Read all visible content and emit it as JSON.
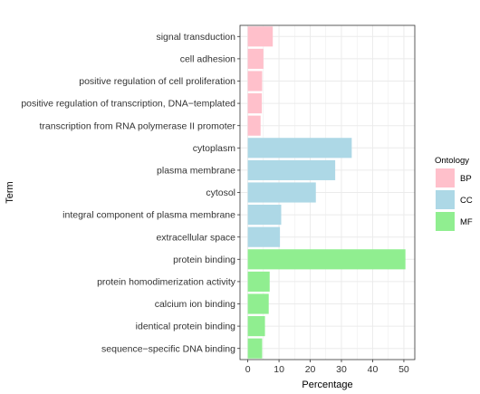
{
  "chart_data": {
    "type": "bar",
    "orientation": "horizontal",
    "xlabel": "Percentage",
    "ylabel": "Term",
    "xlim": [
      -2.5,
      53.5
    ],
    "x_ticks": [
      0,
      10,
      20,
      30,
      40,
      50
    ],
    "grid": true,
    "legend_placement": "right",
    "legend_title": "Ontology",
    "groups": [
      {
        "name": "BP",
        "color": "#FFC0CB"
      },
      {
        "name": "CC",
        "color": "#ADD8E6"
      },
      {
        "name": "MF",
        "color": "#90EE90"
      }
    ],
    "categories": [
      "signal transduction",
      "cell adhesion",
      "positive regulation of cell proliferation",
      "positive regulation of transcription, DNA−templated",
      "transcription from RNA polymerase II promoter",
      "cytoplasm",
      "plasma membrane",
      "cytosol",
      "integral component of plasma membrane",
      "extracellular space",
      "protein binding",
      "protein homodimerization activity",
      "calcium ion binding",
      "identical protein binding",
      "sequence−specific DNA binding"
    ],
    "values": [
      8.0,
      5.0,
      4.6,
      4.5,
      4.1,
      33.3,
      28.0,
      21.8,
      10.7,
      10.3,
      50.5,
      7.0,
      6.7,
      5.5,
      4.6
    ],
    "ontology": [
      "BP",
      "BP",
      "BP",
      "BP",
      "BP",
      "CC",
      "CC",
      "CC",
      "CC",
      "CC",
      "MF",
      "MF",
      "MF",
      "MF",
      "MF"
    ]
  }
}
